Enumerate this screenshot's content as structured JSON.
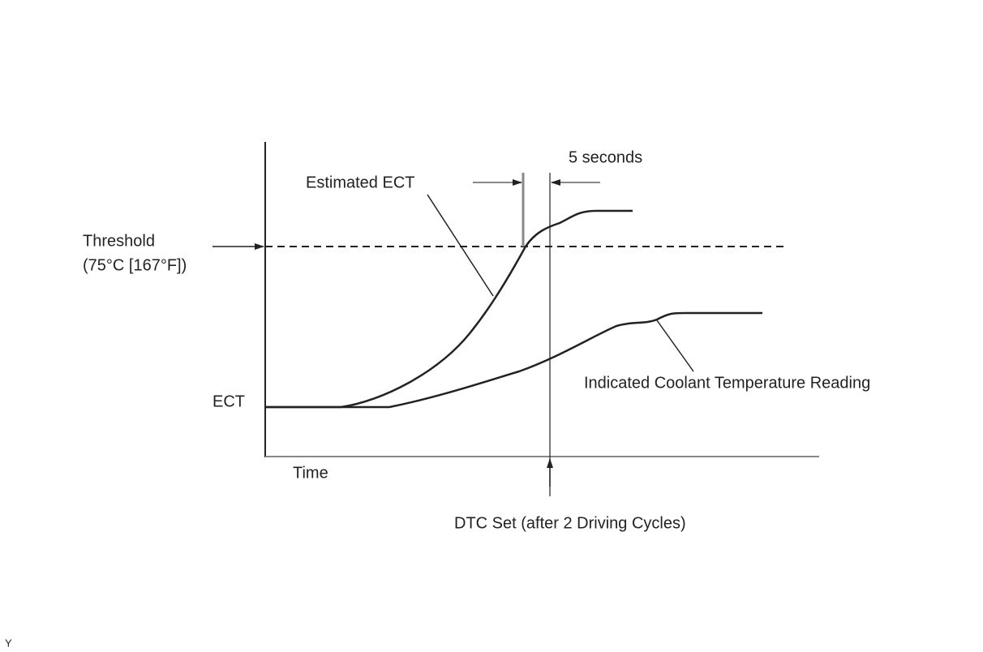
{
  "labels": {
    "five_seconds": "5 seconds",
    "estimated_ect": "Estimated ECT",
    "threshold": "Threshold",
    "threshold_value": "(75°C [167°F])",
    "ect": "ECT",
    "time": "Time",
    "indicated": "Indicated Coolant Temperature Reading",
    "dtc_set": "DTC Set (after 2 Driving Cycles)",
    "corner_mark": "Y"
  }
}
